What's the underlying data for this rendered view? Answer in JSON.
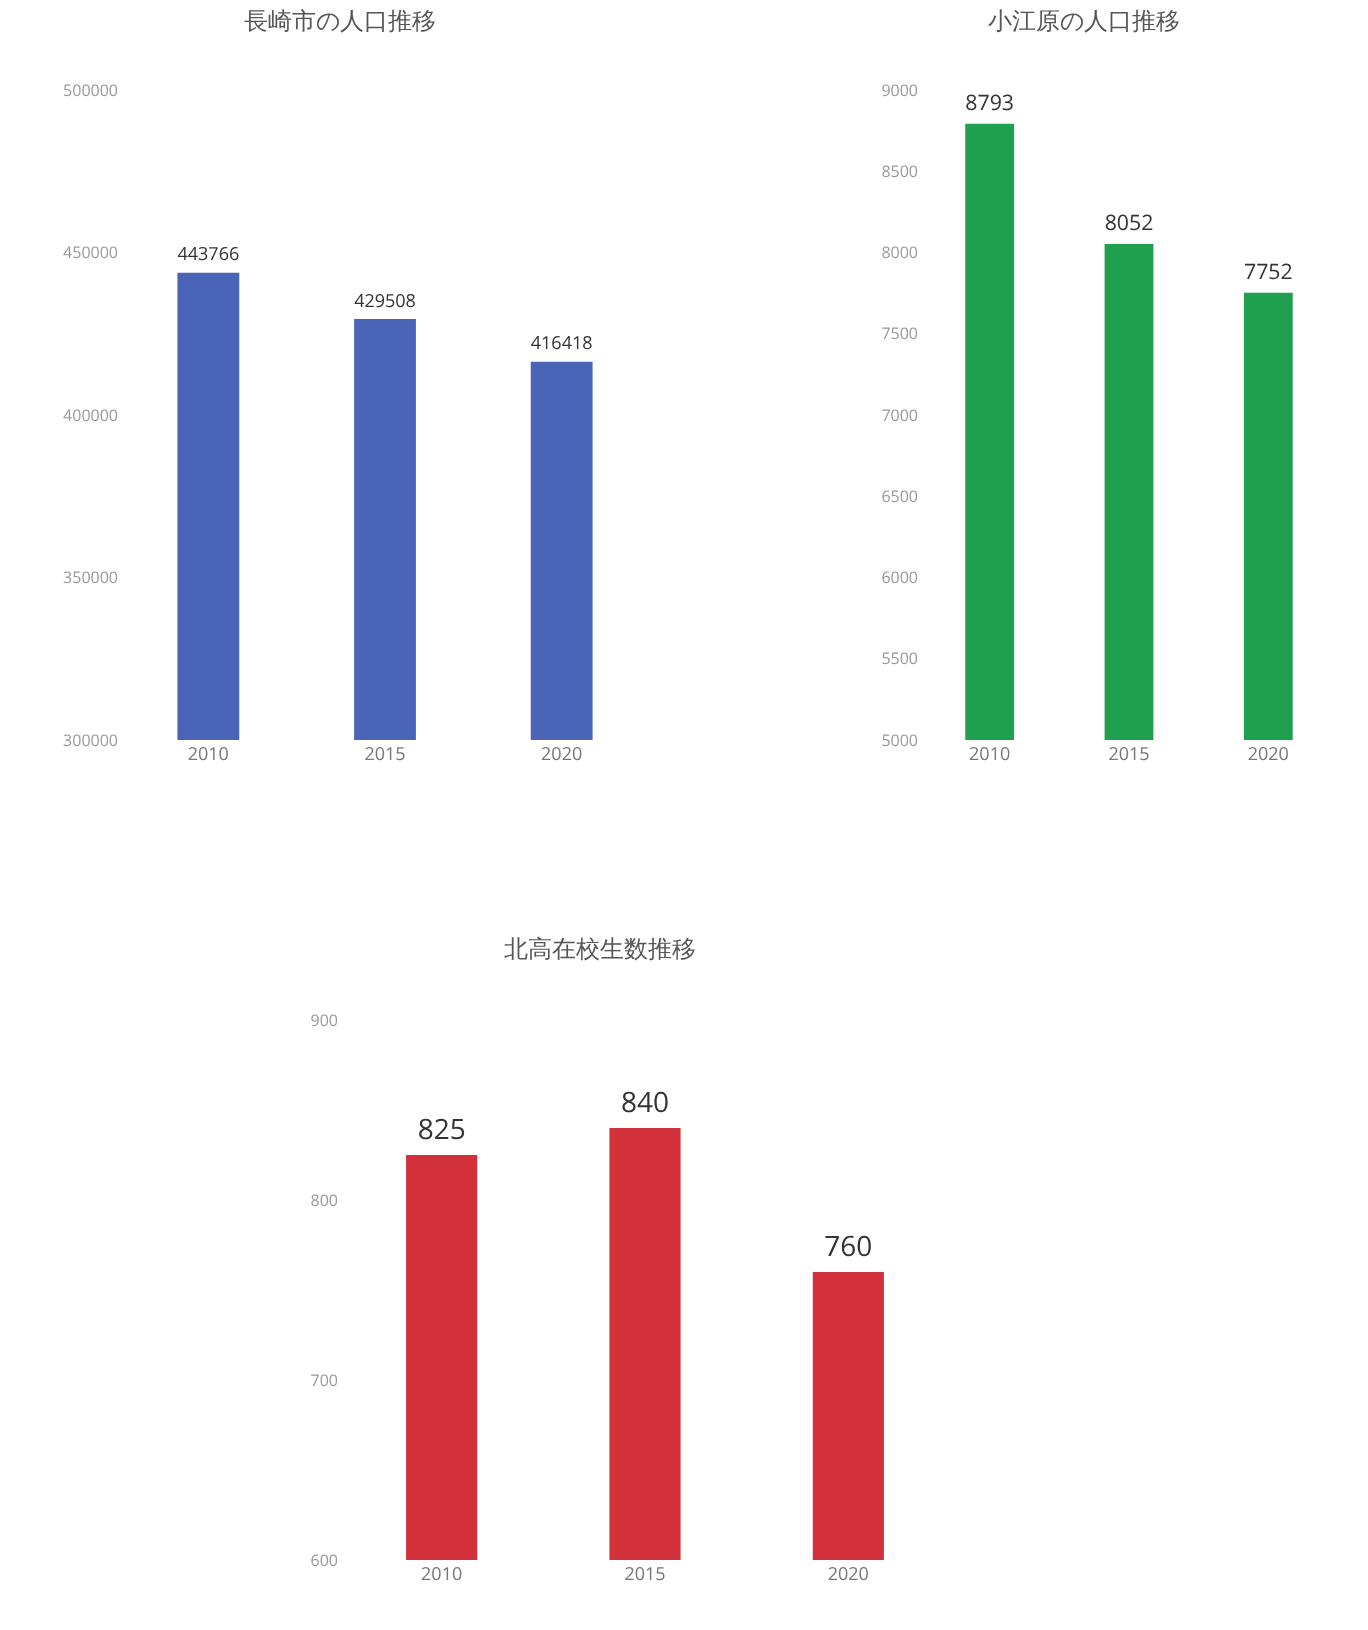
{
  "chart_data": [
    {
      "type": "bar",
      "title": "長崎市の人口推移",
      "categories": [
        "2010",
        "2015",
        "2020"
      ],
      "values": [
        443766,
        429508,
        416418
      ],
      "color": "#4a64b8",
      "ylim": [
        300000,
        500000
      ],
      "yticks": [
        300000,
        350000,
        400000,
        450000,
        500000
      ],
      "data_labels": true,
      "grid": false
    },
    {
      "type": "bar",
      "title": "小江原の人口推移",
      "categories": [
        "2010",
        "2015",
        "2020"
      ],
      "values": [
        8793,
        8052,
        7752
      ],
      "color": "#1ea04f",
      "ylim": [
        5000,
        9000
      ],
      "yticks": [
        5000,
        5500,
        6000,
        6500,
        7000,
        7500,
        8000,
        8500,
        9000
      ],
      "data_labels": true,
      "grid": false
    },
    {
      "type": "bar",
      "title": "北高在校生数推移",
      "categories": [
        "2010",
        "2015",
        "2020"
      ],
      "values": [
        825,
        840,
        760
      ],
      "color": "#d2313a",
      "ylim": [
        600,
        900
      ],
      "yticks": [
        600,
        700,
        800,
        900
      ],
      "data_labels": true,
      "grid": false
    }
  ]
}
